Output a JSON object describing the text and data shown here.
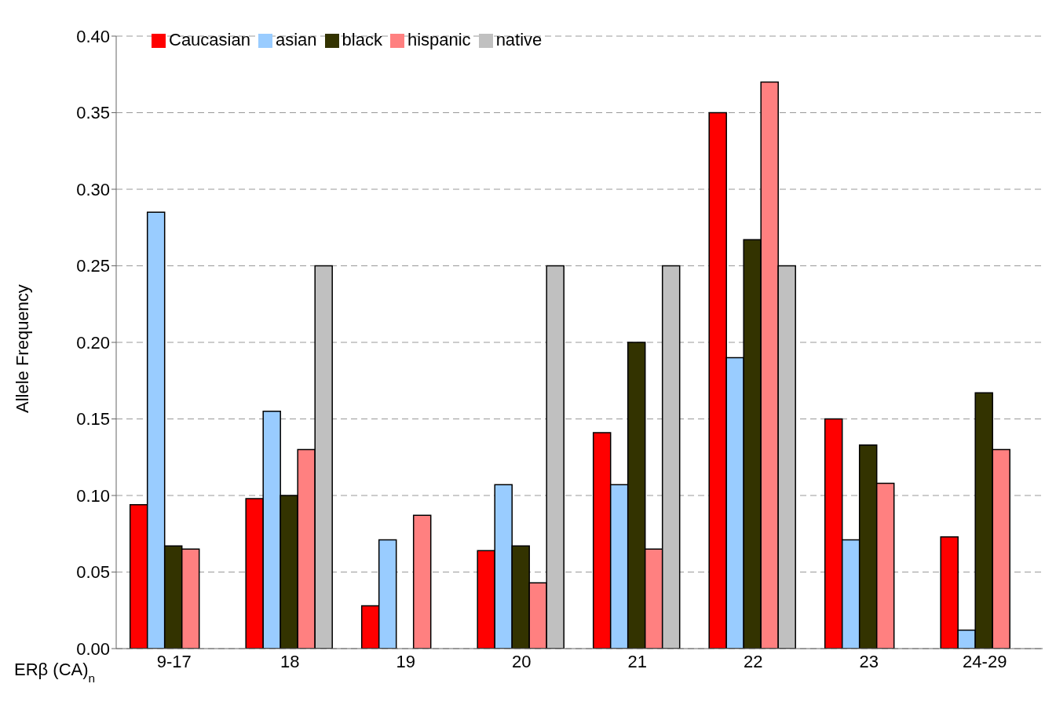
{
  "chart_data": {
    "type": "bar",
    "xlabel": "ERβ (CA)$_{n}$",
    "ylabel": "Allele Frequency",
    "categories": [
      "9-17",
      "18",
      "19",
      "20",
      "21",
      "22",
      "23",
      "24-29"
    ],
    "series": [
      {
        "name": "Caucasian",
        "color": "#ff0000",
        "values": [
          0.094,
          0.098,
          0.028,
          0.064,
          0.141,
          0.35,
          0.15,
          0.073
        ]
      },
      {
        "name": "asian",
        "color": "#99ccff",
        "values": [
          0.285,
          0.155,
          0.071,
          0.107,
          0.107,
          0.19,
          0.071,
          0.012
        ]
      },
      {
        "name": "black",
        "color": "#333300",
        "values": [
          0.067,
          0.1,
          0,
          0.067,
          0.2,
          0.267,
          0.133,
          0.167
        ]
      },
      {
        "name": "hispanic",
        "color": "#ff8080",
        "values": [
          0.065,
          0.13,
          0.087,
          0.043,
          0.065,
          0.37,
          0.108,
          0.13
        ]
      },
      {
        "name": "native",
        "color": "#c0c0c0",
        "values": [
          0,
          0.25,
          0,
          0.25,
          0.25,
          0.25,
          0,
          0
        ]
      }
    ],
    "ylim": [
      0,
      0.4
    ],
    "yticks": [
      {
        "value": 0,
        "label": "0.00"
      },
      {
        "value": 0.05,
        "label": "0.05"
      },
      {
        "value": 0.1,
        "label": "0.10"
      },
      {
        "value": 0.15,
        "label": "0.15"
      },
      {
        "value": 0.2,
        "label": "0.20"
      },
      {
        "value": 0.25,
        "label": "0.25"
      },
      {
        "value": 0.3,
        "label": "0.30"
      },
      {
        "value": 0.35,
        "label": "0.35"
      },
      {
        "value": 0.4,
        "label": "0.40"
      }
    ],
    "grid": "y",
    "legend": "top left"
  }
}
